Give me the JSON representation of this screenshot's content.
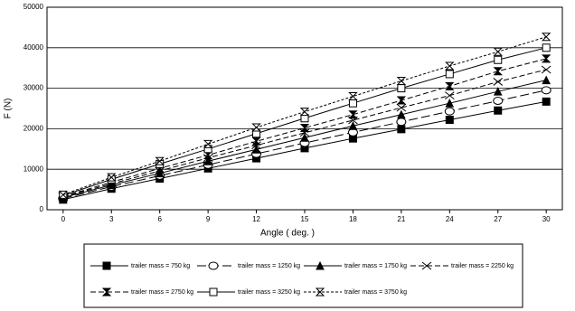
{
  "chart_data": {
    "type": "line",
    "x_label": "Angle ( deg. )",
    "y_label": "F (N)",
    "x": [
      0,
      3,
      6,
      9,
      12,
      15,
      18,
      21,
      24,
      27,
      30
    ],
    "xlim": [
      -1,
      31
    ],
    "xticks": [
      0,
      3,
      6,
      9,
      12,
      15,
      18,
      21,
      24,
      27,
      30
    ],
    "ylim": [
      0,
      50000
    ],
    "yticks": [
      0,
      10000,
      20000,
      30000,
      40000,
      50000
    ],
    "grid": true,
    "series": [
      {
        "name": "trailer mass = 750 kg",
        "color": "#000000",
        "marker": "square-filled",
        "dash": "solid",
        "values": [
          2500,
          5200,
          7700,
          10200,
          12700,
          15200,
          17600,
          19900,
          22200,
          24500,
          26700
        ]
      },
      {
        "name": "trailer mass = 1250 kg",
        "color": "#000000",
        "marker": "circle-open",
        "dash": "long-dash",
        "values": [
          2800,
          5700,
          8400,
          11100,
          13800,
          16500,
          19100,
          21700,
          24300,
          26900,
          29500
        ]
      },
      {
        "name": "trailer mass = 1750 kg",
        "color": "#000000",
        "marker": "triangle-filled",
        "dash": "solid",
        "values": [
          3000,
          6100,
          9000,
          12000,
          14900,
          17800,
          20700,
          23500,
          26300,
          29200,
          32000
        ]
      },
      {
        "name": "trailer mass = 2250 kg",
        "color": "#000000",
        "marker": "x",
        "dash": "dash",
        "values": [
          3200,
          6400,
          9600,
          12800,
          15900,
          19000,
          22100,
          25200,
          28200,
          31600,
          34600
        ]
      },
      {
        "name": "trailer mass = 2750 kg",
        "color": "#000000",
        "marker": "bowtie-filled",
        "dash": "dash",
        "values": [
          3300,
          6800,
          10200,
          13500,
          16900,
          20200,
          23500,
          27000,
          30500,
          34200,
          37300
        ]
      },
      {
        "name": "trailer mass = 3250 kg",
        "color": "#000000",
        "marker": "square-open",
        "dash": "solid",
        "values": [
          3500,
          7500,
          11300,
          15000,
          18800,
          22600,
          26300,
          30000,
          33500,
          37000,
          40000
        ]
      },
      {
        "name": "trailer mass = 3750 kg",
        "color": "#000000",
        "marker": "bowtie-open",
        "dash": "short-dash",
        "values": [
          3700,
          8000,
          12000,
          16200,
          20300,
          24200,
          28000,
          31800,
          35500,
          39000,
          42700
        ]
      }
    ]
  }
}
